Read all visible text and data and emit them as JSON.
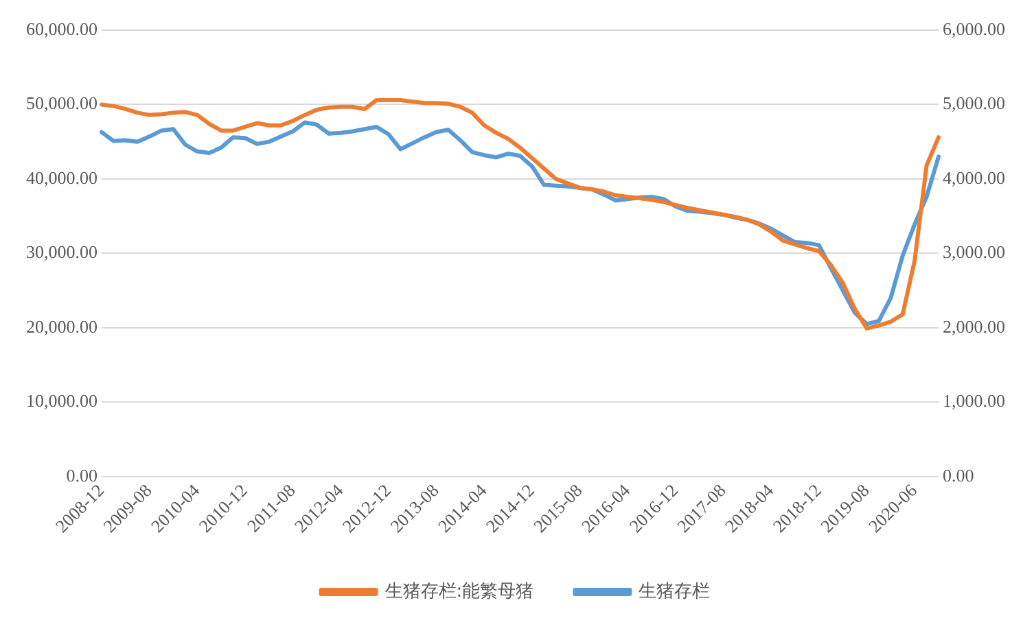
{
  "chart_data": {
    "type": "line",
    "categories": [
      "2008-12",
      null,
      null,
      null,
      "2009-08",
      null,
      null,
      null,
      "2010-04",
      null,
      null,
      null,
      "2010-12",
      null,
      null,
      null,
      "2011-08",
      null,
      null,
      null,
      "2012-04",
      null,
      null,
      null,
      "2012-12",
      null,
      null,
      null,
      "2013-08",
      null,
      null,
      null,
      "2014-04",
      null,
      null,
      null,
      "2014-12",
      null,
      null,
      null,
      "2015-08",
      null,
      null,
      null,
      "2016-04",
      null,
      null,
      null,
      "2016-12",
      null,
      null,
      null,
      "2017-08",
      null,
      null,
      null,
      "2018-04",
      null,
      null,
      null,
      "2018-12",
      null,
      null,
      null,
      "2019-08",
      null,
      null,
      null,
      "2020-06",
      null,
      null
    ],
    "series": [
      {
        "name": "生猪存栏",
        "color": "#5b9bd5",
        "values": [
          46300,
          45100,
          45200,
          45000,
          45700,
          46500,
          46700,
          44600,
          43700,
          43500,
          44200,
          45600,
          45500,
          44700,
          45000,
          45700,
          46400,
          47600,
          47300,
          46100,
          46200,
          46400,
          46700,
          47000,
          46000,
          44000,
          44800,
          45600,
          46300,
          46600,
          45200,
          43600,
          43200,
          42900,
          43400,
          43100,
          41700,
          39200,
          39100,
          39000,
          38800,
          38600,
          37900,
          37100,
          37300,
          37500,
          37600,
          37300,
          36300,
          35700,
          35600,
          35400,
          35200,
          34800,
          34500,
          34000,
          33300,
          32400,
          31500,
          31400,
          31100,
          28000,
          25000,
          22000,
          20500,
          20900,
          24000,
          29700,
          33900,
          37600,
          43000
        ]
      },
      {
        "name": "生猪存栏:能繁母猪",
        "color": "#ed7d31",
        "axis": "y2",
        "values": [
          5000,
          4980,
          4940,
          4890,
          4860,
          4870,
          4890,
          4900,
          4860,
          4740,
          4650,
          4650,
          4700,
          4750,
          4720,
          4720,
          4780,
          4860,
          4930,
          4960,
          4970,
          4970,
          4940,
          5060,
          5060,
          5060,
          5040,
          5020,
          5020,
          5010,
          4970,
          4890,
          4720,
          4620,
          4540,
          4420,
          4280,
          4140,
          4000,
          3940,
          3880,
          3860,
          3830,
          3780,
          3760,
          3740,
          3720,
          3690,
          3650,
          3610,
          3580,
          3550,
          3520,
          3490,
          3450,
          3390,
          3290,
          3170,
          3120,
          3070,
          3030,
          2840,
          2600,
          2250,
          1990,
          2030,
          2080,
          2180,
          2900,
          4180,
          4560
        ]
      }
    ],
    "ylim": [
      0,
      60000
    ],
    "yticks": [
      {
        "value": 0,
        "label": "0.00"
      },
      {
        "value": 10000,
        "label": "10,000.00"
      },
      {
        "value": 20000,
        "label": "20,000.00"
      },
      {
        "value": 30000,
        "label": "30,000.00"
      },
      {
        "value": 40000,
        "label": "40,000.00"
      },
      {
        "value": 50000,
        "label": "50,000.00"
      },
      {
        "value": 60000,
        "label": "60,000.00"
      }
    ],
    "y2lim": [
      0,
      6000
    ],
    "y2ticks": [
      {
        "value": 0,
        "label": "0.00"
      },
      {
        "value": 1000,
        "label": "1,000.00"
      },
      {
        "value": 2000,
        "label": "2,000.00"
      },
      {
        "value": 3000,
        "label": "3,000.00"
      },
      {
        "value": 4000,
        "label": "4,000.00"
      },
      {
        "value": 5000,
        "label": "5,000.00"
      },
      {
        "value": 6000,
        "label": "6,000.00"
      }
    ],
    "grid": "y",
    "legend": "bottom",
    "marker": "none",
    "line_style": "solid"
  }
}
